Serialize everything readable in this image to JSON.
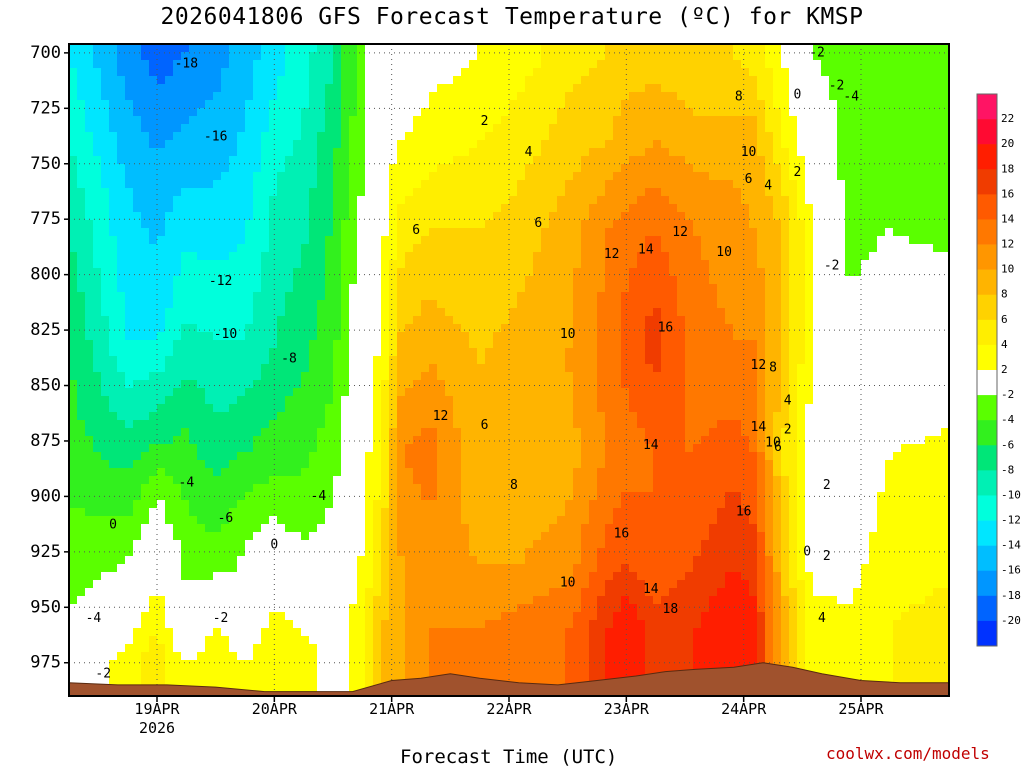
{
  "chart_data": {
    "type": "heatmap",
    "subtype": "time-height filled contour",
    "title": "2026041806 GFS Forecast Temperature (ºC) for KMSP",
    "xlabel": "Forecast Time (UTC)",
    "ylabel": "",
    "credit": "coolwx.com/models",
    "x_ticks": [
      {
        "label": "19APR",
        "sub": "2026",
        "t": 18
      },
      {
        "label": "20APR",
        "sub": "",
        "t": 42
      },
      {
        "label": "21APR",
        "sub": "",
        "t": 66
      },
      {
        "label": "22APR",
        "sub": "",
        "t": 90
      },
      {
        "label": "23APR",
        "sub": "",
        "t": 114
      },
      {
        "label": "24APR",
        "sub": "",
        "t": 138
      },
      {
        "label": "25APR",
        "sub": "",
        "t": 162
      }
    ],
    "xlim_hours": [
      0,
      180
    ],
    "y_ticks": [
      700,
      725,
      750,
      775,
      800,
      825,
      850,
      875,
      900,
      925,
      950,
      975
    ],
    "ylim_hPa": [
      696,
      990
    ],
    "colorbar_levels": [
      22,
      20,
      18,
      16,
      14,
      12,
      10,
      8,
      6,
      4,
      2,
      -2,
      -4,
      -6,
      -8,
      -10,
      -12,
      -14,
      -16,
      -18,
      -20
    ],
    "colorbar_colors": [
      "#ff1464",
      "#ff0a32",
      "#ff1e00",
      "#f03c00",
      "#ff5a00",
      "#ff7800",
      "#ff9600",
      "#ffb400",
      "#ffd200",
      "#ffee00",
      "#ffff00",
      "#ffffff",
      "#5aff00",
      "#32f01e",
      "#00e678",
      "#00f0b4",
      "#00ffdc",
      "#00e6ff",
      "#00beff",
      "#0096ff",
      "#0064ff",
      "#0032ff"
    ],
    "columns": [
      {
        "t": 0,
        "profile": [
          [
            700,
            -12
          ],
          [
            740,
            -10
          ],
          [
            780,
            -8
          ],
          [
            830,
            -6
          ],
          [
            880,
            -5
          ],
          [
            930,
            -3
          ],
          [
            970,
            -1
          ]
        ]
      },
      {
        "t": 12,
        "profile": [
          [
            700,
            -17
          ],
          [
            760,
            -14
          ],
          [
            830,
            -12
          ],
          [
            870,
            -8
          ],
          [
            910,
            -4
          ],
          [
            950,
            0
          ],
          [
            975,
            3
          ]
        ]
      },
      {
        "t": 18,
        "profile": [
          [
            700,
            -19
          ],
          [
            760,
            -15
          ],
          [
            820,
            -13
          ],
          [
            870,
            -7
          ],
          [
            900,
            -2
          ],
          [
            940,
            2
          ],
          [
            970,
            5
          ]
        ]
      },
      {
        "t": 24,
        "profile": [
          [
            700,
            -18
          ],
          [
            760,
            -14
          ],
          [
            820,
            -10
          ],
          [
            870,
            -6
          ],
          [
            920,
            -3
          ],
          [
            960,
            -1
          ],
          [
            975,
            2
          ]
        ]
      },
      {
        "t": 30,
        "profile": [
          [
            700,
            -17
          ],
          [
            760,
            -14
          ],
          [
            830,
            -10
          ],
          [
            880,
            -7
          ],
          [
            930,
            -3
          ],
          [
            960,
            2
          ],
          [
            975,
            4
          ]
        ]
      },
      {
        "t": 36,
        "profile": [
          [
            700,
            -15
          ],
          [
            760,
            -13
          ],
          [
            830,
            -10
          ],
          [
            880,
            -6
          ],
          [
            920,
            -2
          ],
          [
            950,
            -1
          ],
          [
            975,
            2
          ]
        ]
      },
      {
        "t": 42,
        "profile": [
          [
            700,
            -13
          ],
          [
            760,
            -10
          ],
          [
            830,
            -8
          ],
          [
            880,
            -5
          ],
          [
            920,
            -1
          ],
          [
            950,
            2
          ],
          [
            975,
            4
          ]
        ]
      },
      {
        "t": 48,
        "profile": [
          [
            700,
            -11
          ],
          [
            760,
            -9
          ],
          [
            820,
            -7
          ],
          [
            870,
            -5
          ],
          [
            910,
            -3
          ],
          [
            950,
            1
          ],
          [
            975,
            3
          ]
        ]
      },
      {
        "t": 54,
        "profile": [
          [
            700,
            -8
          ],
          [
            760,
            -6
          ],
          [
            820,
            -5
          ],
          [
            880,
            -3
          ],
          [
            920,
            -1
          ],
          [
            960,
            1
          ]
        ]
      },
      {
        "t": 60,
        "profile": [
          [
            700,
            -3
          ],
          [
            760,
            -2
          ],
          [
            820,
            0
          ],
          [
            880,
            1
          ],
          [
            920,
            2
          ],
          [
            960,
            3
          ]
        ]
      },
      {
        "t": 64,
        "profile": [
          [
            700,
            0
          ],
          [
            760,
            1
          ],
          [
            820,
            2
          ],
          [
            880,
            4
          ],
          [
            930,
            6
          ],
          [
            960,
            8
          ]
        ]
      },
      {
        "t": 68,
        "profile": [
          [
            700,
            0
          ],
          [
            740,
            2
          ],
          [
            780,
            5
          ],
          [
            840,
            9
          ],
          [
            880,
            12
          ],
          [
            930,
            10
          ],
          [
            960,
            10
          ]
        ]
      },
      {
        "t": 74,
        "profile": [
          [
            700,
            1
          ],
          [
            740,
            3
          ],
          [
            780,
            6
          ],
          [
            840,
            10
          ],
          [
            880,
            13
          ],
          [
            930,
            11
          ],
          [
            960,
            12
          ]
        ]
      },
      {
        "t": 84,
        "profile": [
          [
            700,
            2
          ],
          [
            740,
            4
          ],
          [
            780,
            6
          ],
          [
            840,
            8
          ],
          [
            880,
            8
          ],
          [
            930,
            10
          ],
          [
            960,
            12
          ]
        ]
      },
      {
        "t": 92,
        "profile": [
          [
            700,
            3
          ],
          [
            740,
            5
          ],
          [
            780,
            7
          ],
          [
            840,
            9
          ],
          [
            880,
            8
          ],
          [
            930,
            10
          ],
          [
            960,
            13
          ]
        ]
      },
      {
        "t": 102,
        "profile": [
          [
            700,
            5
          ],
          [
            740,
            7
          ],
          [
            780,
            9
          ],
          [
            840,
            10
          ],
          [
            880,
            9
          ],
          [
            930,
            11
          ],
          [
            960,
            14
          ]
        ]
      },
      {
        "t": 110,
        "profile": [
          [
            700,
            6
          ],
          [
            740,
            8
          ],
          [
            780,
            12
          ],
          [
            840,
            13
          ],
          [
            880,
            12
          ],
          [
            930,
            15
          ],
          [
            960,
            18
          ]
        ]
      },
      {
        "t": 114,
        "profile": [
          [
            700,
            7
          ],
          [
            740,
            9
          ],
          [
            780,
            13
          ],
          [
            830,
            15
          ],
          [
            880,
            13
          ],
          [
            930,
            16
          ],
          [
            960,
            20
          ]
        ]
      },
      {
        "t": 120,
        "profile": [
          [
            700,
            7
          ],
          [
            740,
            10
          ],
          [
            780,
            14
          ],
          [
            830,
            17
          ],
          [
            880,
            14
          ],
          [
            930,
            14
          ],
          [
            960,
            17
          ]
        ]
      },
      {
        "t": 128,
        "profile": [
          [
            700,
            6
          ],
          [
            740,
            9
          ],
          [
            780,
            12
          ],
          [
            830,
            13
          ],
          [
            880,
            14
          ],
          [
            930,
            16
          ],
          [
            960,
            18
          ]
        ]
      },
      {
        "t": 136,
        "profile": [
          [
            700,
            6
          ],
          [
            740,
            9
          ],
          [
            780,
            11
          ],
          [
            830,
            12
          ],
          [
            880,
            15
          ],
          [
            930,
            18
          ],
          [
            960,
            20
          ]
        ]
      },
      {
        "t": 140,
        "profile": [
          [
            700,
            5
          ],
          [
            740,
            9
          ],
          [
            780,
            10
          ],
          [
            830,
            12
          ],
          [
            880,
            14
          ],
          [
            930,
            17
          ],
          [
            960,
            19
          ]
        ]
      },
      {
        "t": 146,
        "profile": [
          [
            700,
            2
          ],
          [
            740,
            4
          ],
          [
            780,
            8
          ],
          [
            830,
            8
          ],
          [
            880,
            6
          ],
          [
            930,
            8
          ],
          [
            960,
            9
          ]
        ]
      },
      {
        "t": 152,
        "profile": [
          [
            700,
            -2
          ],
          [
            740,
            0
          ],
          [
            780,
            2
          ],
          [
            830,
            2
          ],
          [
            880,
            1
          ],
          [
            930,
            1
          ],
          [
            960,
            3
          ]
        ]
      },
      {
        "t": 160,
        "profile": [
          [
            700,
            -3
          ],
          [
            740,
            -3
          ],
          [
            780,
            -3
          ],
          [
            830,
            -1
          ],
          [
            870,
            0
          ],
          [
            910,
            1
          ],
          [
            950,
            2
          ]
        ]
      },
      {
        "t": 168,
        "profile": [
          [
            700,
            -3
          ],
          [
            740,
            -4
          ],
          [
            780,
            -2
          ],
          [
            830,
            1
          ],
          [
            880,
            2
          ],
          [
            930,
            3
          ],
          [
            960,
            4
          ]
        ]
      },
      {
        "t": 180,
        "profile": [
          [
            700,
            -4
          ],
          [
            740,
            -4
          ],
          [
            780,
            -3
          ],
          [
            830,
            2
          ],
          [
            870,
            2
          ],
          [
            920,
            3
          ],
          [
            960,
            5
          ]
        ]
      }
    ],
    "labels": [
      {
        "t": 24,
        "p": 705,
        "text": "-18"
      },
      {
        "t": 30,
        "p": 738,
        "text": "-16"
      },
      {
        "t": 31,
        "p": 803,
        "text": "-12"
      },
      {
        "t": 32,
        "p": 827,
        "text": "-10"
      },
      {
        "t": 45,
        "p": 838,
        "text": "-8"
      },
      {
        "t": 24,
        "p": 894,
        "text": "-4"
      },
      {
        "t": 32,
        "p": 910,
        "text": "-6"
      },
      {
        "t": 9,
        "p": 913,
        "text": "0"
      },
      {
        "t": 42,
        "p": 922,
        "text": "0"
      },
      {
        "t": 31,
        "p": 955,
        "text": "-2"
      },
      {
        "t": 5,
        "p": 955,
        "text": "-4"
      },
      {
        "t": 51,
        "p": 900,
        "text": "-4"
      },
      {
        "t": 7,
        "p": 980,
        "text": "-2"
      },
      {
        "t": 85,
        "p": 731,
        "text": "2"
      },
      {
        "t": 94,
        "p": 745,
        "text": "4"
      },
      {
        "t": 71,
        "p": 780,
        "text": "6"
      },
      {
        "t": 96,
        "p": 777,
        "text": "6"
      },
      {
        "t": 76,
        "p": 864,
        "text": "12"
      },
      {
        "t": 85,
        "p": 868,
        "text": "6"
      },
      {
        "t": 91,
        "p": 895,
        "text": "8"
      },
      {
        "t": 102,
        "p": 827,
        "text": "10"
      },
      {
        "t": 111,
        "p": 791,
        "text": "12"
      },
      {
        "t": 118,
        "p": 789,
        "text": "14"
      },
      {
        "t": 125,
        "p": 781,
        "text": "12"
      },
      {
        "t": 122,
        "p": 824,
        "text": "16"
      },
      {
        "t": 134,
        "p": 790,
        "text": "10"
      },
      {
        "t": 119,
        "p": 877,
        "text": "14"
      },
      {
        "t": 113,
        "p": 917,
        "text": "16"
      },
      {
        "t": 119,
        "p": 942,
        "text": "14"
      },
      {
        "t": 102,
        "p": 939,
        "text": "10"
      },
      {
        "t": 123,
        "p": 951,
        "text": "18"
      },
      {
        "t": 138,
        "p": 907,
        "text": "16"
      },
      {
        "t": 137,
        "p": 720,
        "text": "8"
      },
      {
        "t": 139,
        "p": 745,
        "text": "10"
      },
      {
        "t": 139,
        "p": 757,
        "text": "6"
      },
      {
        "t": 143,
        "p": 760,
        "text": "4"
      },
      {
        "t": 149,
        "p": 754,
        "text": "2"
      },
      {
        "t": 149,
        "p": 719,
        "text": "0"
      },
      {
        "t": 153,
        "p": 700,
        "text": "-2"
      },
      {
        "t": 157,
        "p": 715,
        "text": "-2"
      },
      {
        "t": 160,
        "p": 720,
        "text": "-4"
      },
      {
        "t": 156,
        "p": 796,
        "text": "-2"
      },
      {
        "t": 141,
        "p": 841,
        "text": "12"
      },
      {
        "t": 144,
        "p": 842,
        "text": "8"
      },
      {
        "t": 141,
        "p": 869,
        "text": "14"
      },
      {
        "t": 144,
        "p": 876,
        "text": "10"
      },
      {
        "t": 145,
        "p": 878,
        "text": "6"
      },
      {
        "t": 147,
        "p": 870,
        "text": "2"
      },
      {
        "t": 147,
        "p": 857,
        "text": "4"
      },
      {
        "t": 155,
        "p": 895,
        "text": "2"
      },
      {
        "t": 151,
        "p": 925,
        "text": "0"
      },
      {
        "t": 155,
        "p": 927,
        "text": "2"
      },
      {
        "t": 154,
        "p": 955,
        "text": "4"
      }
    ]
  }
}
